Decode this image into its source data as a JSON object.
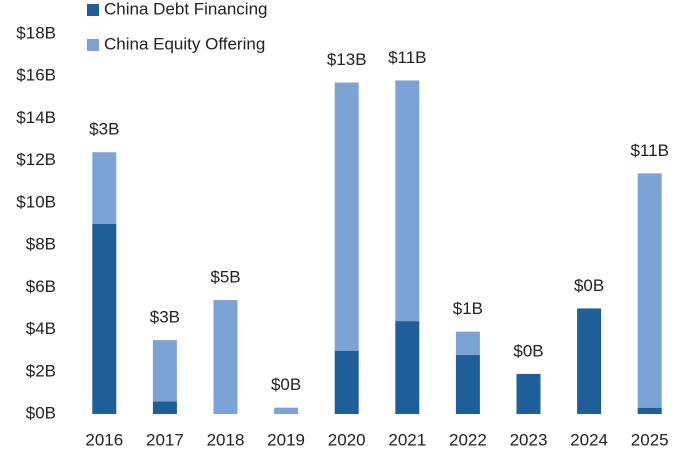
{
  "chart_data": {
    "type": "stacked-bar",
    "categories": [
      "2016",
      "2017",
      "2018",
      "2019",
      "2020",
      "2021",
      "2022",
      "2023",
      "2024",
      "2025"
    ],
    "series": [
      {
        "name": "China Debt Financing",
        "color": "#1f5f99",
        "values": [
          9.0,
          0.6,
          0,
          0,
          3.0,
          4.4,
          2.8,
          1.9,
          5.0,
          0.3
        ]
      },
      {
        "name": "China Equity Offering",
        "color": "#7ba3d6",
        "values": [
          3.4,
          2.9,
          5.4,
          0.3,
          12.7,
          11.4,
          1.1,
          0,
          0,
          11.1
        ],
        "value_labels": [
          "$3B",
          "$3B",
          "$5B",
          "$0B",
          "$13B",
          "$11B",
          "$1B",
          "$0B",
          "$0B",
          "$11B"
        ]
      }
    ],
    "ylim": [
      0,
      18
    ],
    "yticks": [
      {
        "value": 0,
        "label": "$0B"
      },
      {
        "value": 2,
        "label": "$2B"
      },
      {
        "value": 4,
        "label": "$4B"
      },
      {
        "value": 6,
        "label": "$6B"
      },
      {
        "value": 8,
        "label": "$8B"
      },
      {
        "value": 10,
        "label": "$10B"
      },
      {
        "value": 12,
        "label": "$12B"
      },
      {
        "value": 14,
        "label": "$14B"
      },
      {
        "value": 16,
        "label": "$16B"
      },
      {
        "value": 18,
        "label": "$18B"
      }
    ],
    "legend": "top-left"
  }
}
